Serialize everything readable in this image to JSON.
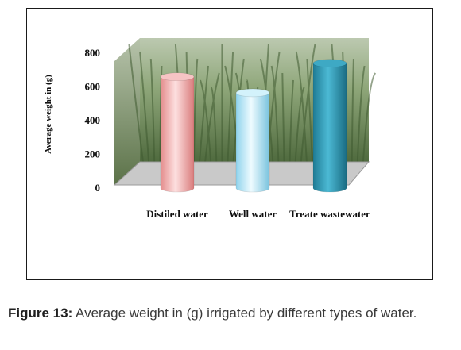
{
  "chart_data": {
    "type": "bar",
    "title": "",
    "xlabel": "",
    "ylabel": "Average weight in (g)",
    "categories": [
      "Distiled water",
      "Well water",
      "Treate wastewater"
    ],
    "values": [
      660,
      565,
      740
    ],
    "ylim": [
      0,
      800
    ],
    "yticks": [
      0,
      200,
      400,
      600,
      800
    ],
    "grid": false,
    "legend": "none",
    "colors": [
      "#f2a3a3",
      "#a9e2f4",
      "#2e98b3"
    ],
    "background": "grass photo"
  },
  "caption": {
    "label": "Figure 13:",
    "text": " Average weight in (g) irrigated by different types of water."
  }
}
